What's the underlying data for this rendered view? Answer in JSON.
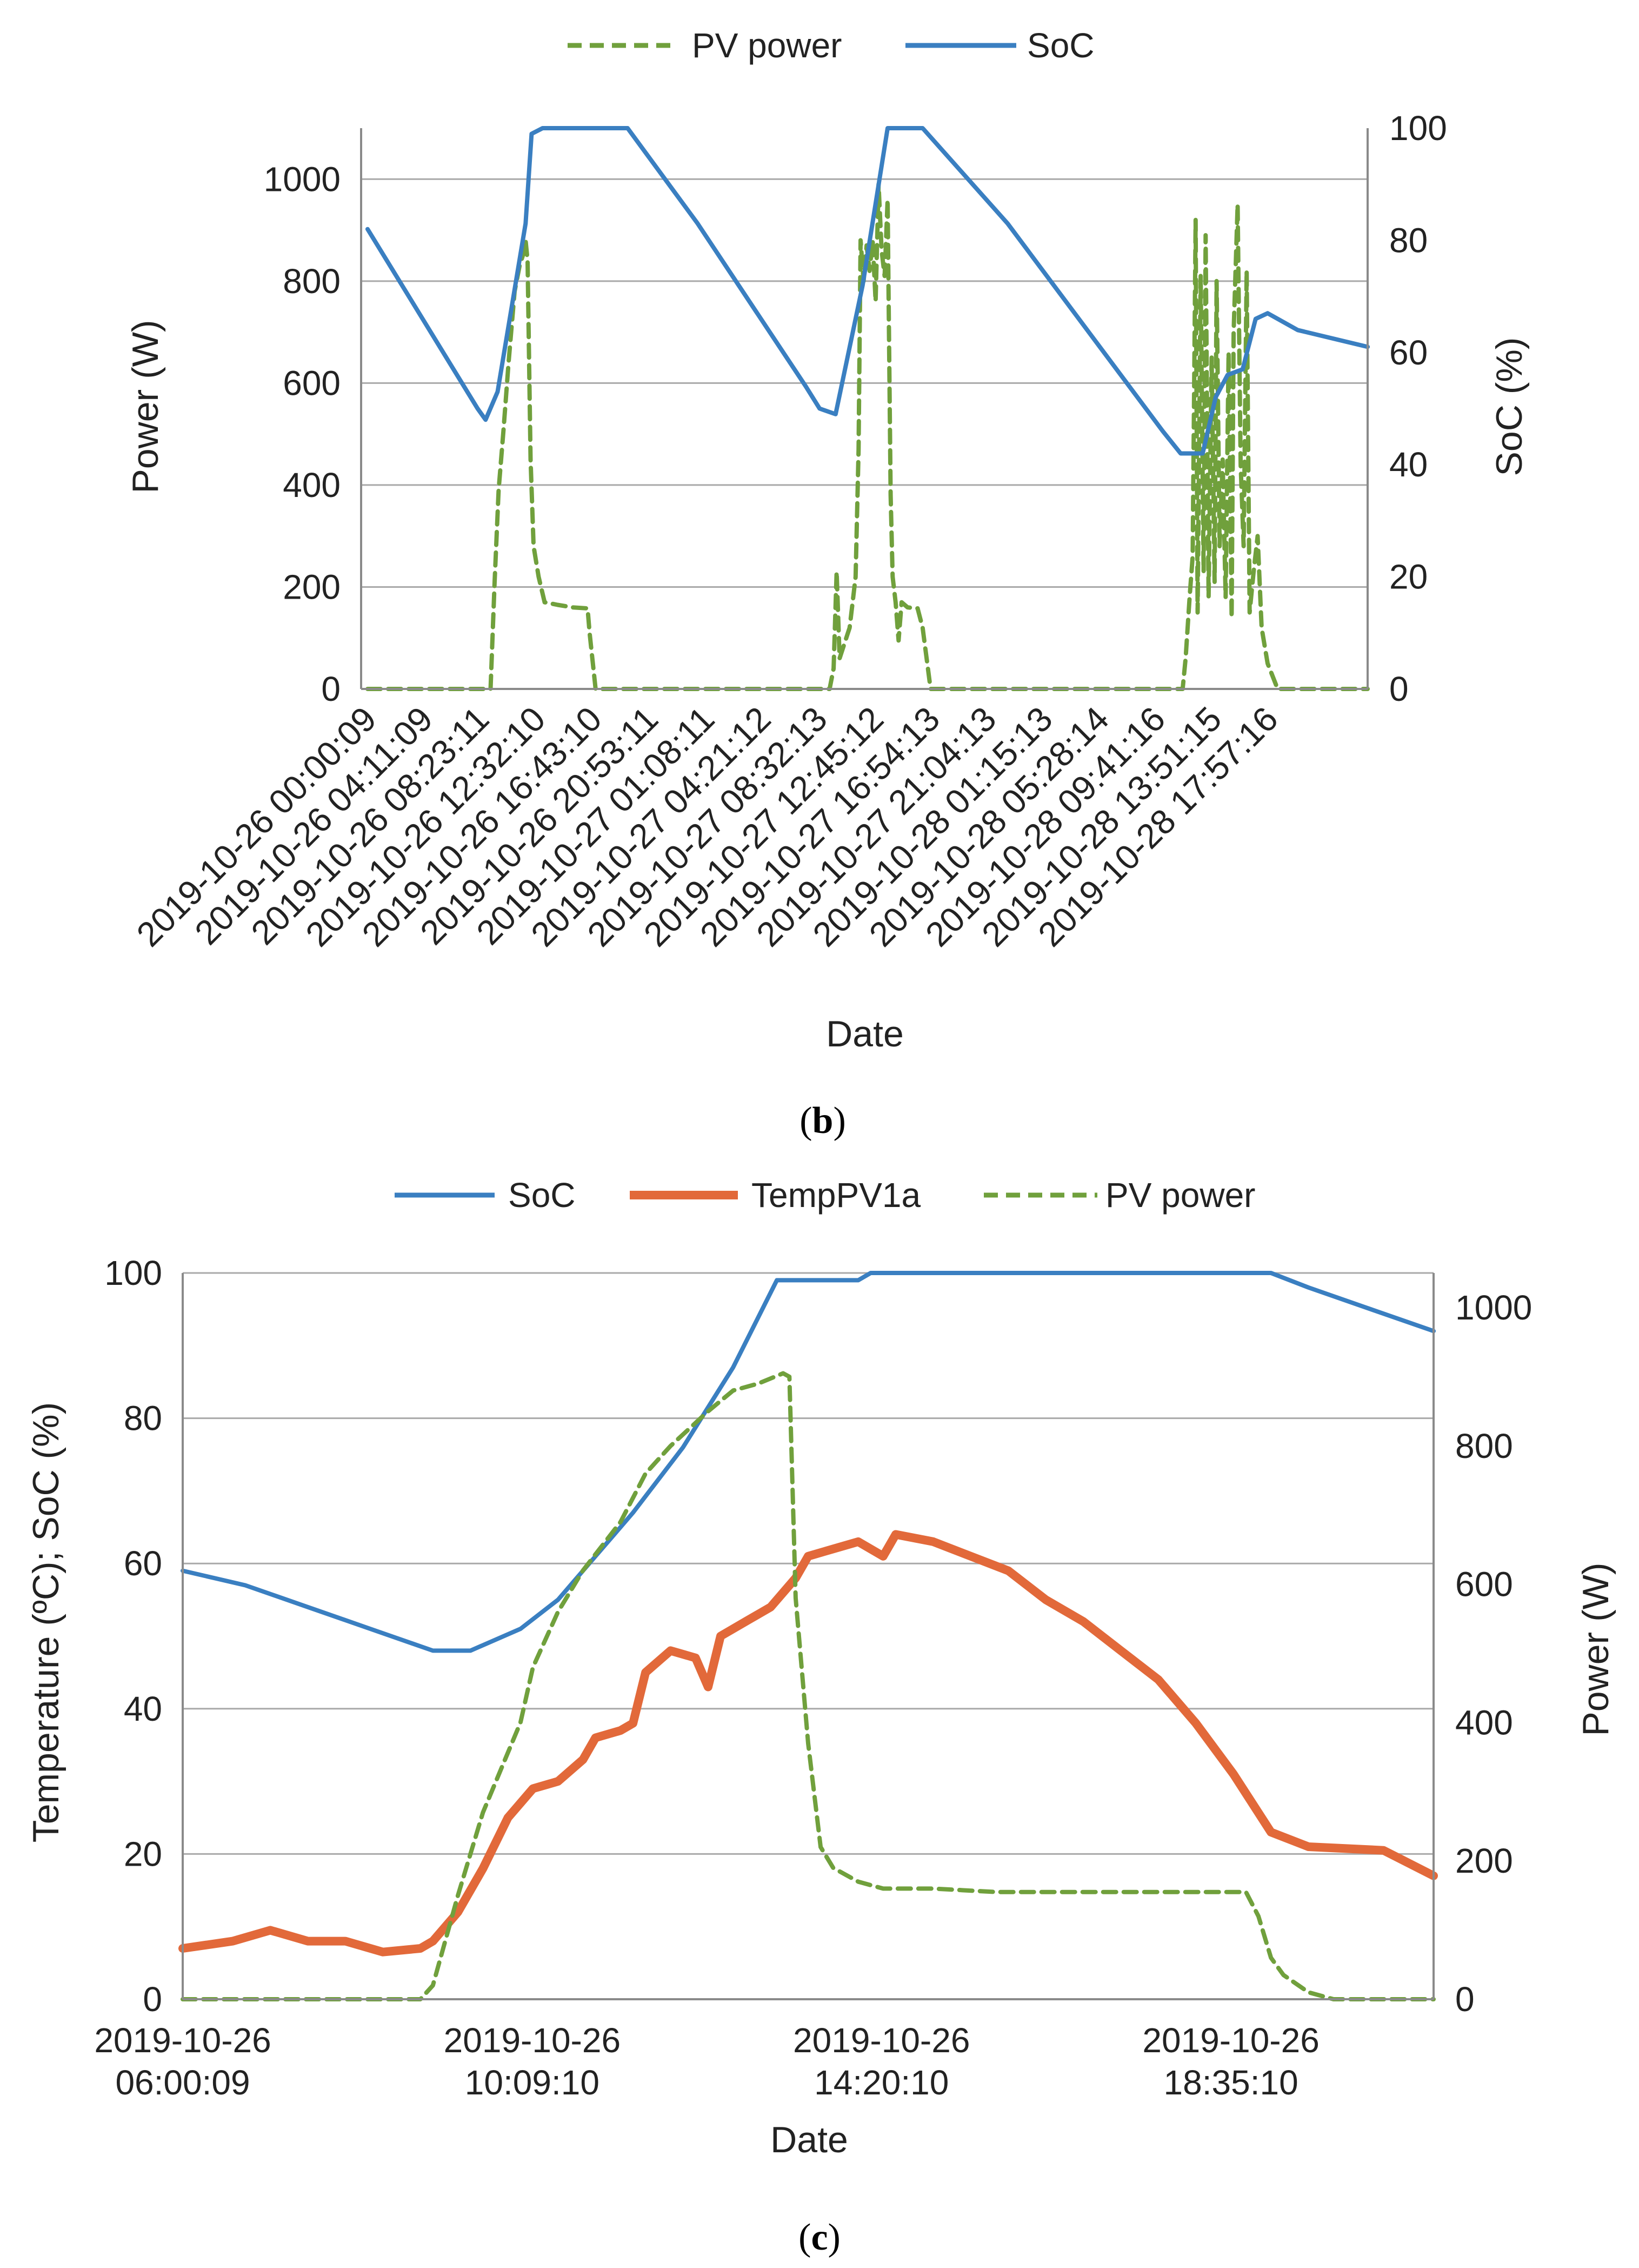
{
  "chart_data": [
    {
      "id": "b",
      "type": "line",
      "caption": "b",
      "xlabel": "Date",
      "ylabel_left": "Power (W)",
      "ylabel_right": "SoC (%)",
      "ylim_left": [
        0,
        1100
      ],
      "ylim_right": [
        0,
        100
      ],
      "yticks_left": [
        0,
        200,
        400,
        600,
        800,
        1000
      ],
      "yticks_right": [
        0,
        20,
        40,
        60,
        80,
        100
      ],
      "grid": true,
      "legend_position": "top",
      "xrange": [
        0,
        1
      ],
      "x_tick_labels": [
        "2019-10-26 00:00:09",
        "2019-10-26 04:11:09",
        "2019-10-26 08:23:11",
        "2019-10-26 12:32:10",
        "2019-10-26 16:43:10",
        "2019-10-26 20:53:11",
        "2019-10-27 01:08:11",
        "2019-10-27 04:21:12",
        "2019-10-27 08:32:13",
        "2019-10-27 12:45:12",
        "2019-10-27 16:54:13",
        "2019-10-27 21:04:13",
        "2019-10-28 01:15:13",
        "2019-10-28 05:28:14",
        "2019-10-28 09:41:16",
        "2019-10-28 13:51:15",
        "2019-10-28 17:57:16"
      ],
      "series": [
        {
          "name": "PV power",
          "axis": "left",
          "color": "#70a03c",
          "dash": true,
          "points": [
            [
              0,
              0
            ],
            [
              0.123,
              0
            ],
            [
              0.127,
              210
            ],
            [
              0.131,
              390
            ],
            [
              0.136,
              510
            ],
            [
              0.141,
              640
            ],
            [
              0.147,
              780
            ],
            [
              0.152,
              830
            ],
            [
              0.156,
              855
            ],
            [
              0.158,
              880
            ],
            [
              0.16,
              840
            ],
            [
              0.163,
              450
            ],
            [
              0.166,
              280
            ],
            [
              0.171,
              220
            ],
            [
              0.177,
              170
            ],
            [
              0.19,
              165
            ],
            [
              0.205,
              160
            ],
            [
              0.22,
              158
            ],
            [
              0.222,
              110
            ],
            [
              0.228,
              0
            ],
            [
              0.462,
              0
            ],
            [
              0.466,
              40
            ],
            [
              0.469,
              230
            ],
            [
              0.472,
              60
            ],
            [
              0.477,
              90
            ],
            [
              0.482,
              120
            ],
            [
              0.485,
              170
            ],
            [
              0.488,
              220
            ],
            [
              0.491,
              470
            ],
            [
              0.493,
              880
            ],
            [
              0.496,
              800
            ],
            [
              0.499,
              870
            ],
            [
              0.502,
              820
            ],
            [
              0.505,
              880
            ],
            [
              0.508,
              760
            ],
            [
              0.511,
              990
            ],
            [
              0.514,
              860
            ],
            [
              0.517,
              810
            ],
            [
              0.52,
              960
            ],
            [
              0.523,
              380
            ],
            [
              0.525,
              220
            ],
            [
              0.528,
              170
            ],
            [
              0.531,
              95
            ],
            [
              0.534,
              170
            ],
            [
              0.54,
              160
            ],
            [
              0.55,
              158
            ],
            [
              0.555,
              120
            ],
            [
              0.563,
              0
            ],
            [
              0.815,
              0
            ],
            [
              0.818,
              60
            ],
            [
              0.822,
              180
            ],
            [
              0.825,
              260
            ],
            [
              0.828,
              920
            ],
            [
              0.83,
              150
            ],
            [
              0.833,
              810
            ],
            [
              0.836,
              230
            ],
            [
              0.838,
              890
            ],
            [
              0.841,
              180
            ],
            [
              0.844,
              650
            ],
            [
              0.847,
              210
            ],
            [
              0.849,
              800
            ],
            [
              0.852,
              280
            ],
            [
              0.855,
              450
            ],
            [
              0.858,
              180
            ],
            [
              0.861,
              660
            ],
            [
              0.864,
              140
            ],
            [
              0.866,
              700
            ],
            [
              0.87,
              950
            ],
            [
              0.873,
              440
            ],
            [
              0.876,
              280
            ],
            [
              0.879,
              820
            ],
            [
              0.882,
              150
            ],
            [
              0.886,
              230
            ],
            [
              0.89,
              300
            ],
            [
              0.894,
              120
            ],
            [
              0.9,
              50
            ],
            [
              0.91,
              0
            ],
            [
              1,
              0
            ]
          ]
        },
        {
          "name": "SoC",
          "axis": "right",
          "color": "#3a7fc1",
          "dash": false,
          "points": [
            [
              0,
              82
            ],
            [
              0.11,
              50
            ],
            [
              0.118,
              48
            ],
            [
              0.13,
              53
            ],
            [
              0.158,
              83
            ],
            [
              0.164,
              99
            ],
            [
              0.175,
              100
            ],
            [
              0.26,
              100
            ],
            [
              0.33,
              83
            ],
            [
              0.438,
              54
            ],
            [
              0.452,
              50
            ],
            [
              0.468,
              49
            ],
            [
              0.495,
              72
            ],
            [
              0.52,
              100
            ],
            [
              0.555,
              100
            ],
            [
              0.64,
              83
            ],
            [
              0.795,
              46
            ],
            [
              0.813,
              42
            ],
            [
              0.835,
              42
            ],
            [
              0.848,
              52
            ],
            [
              0.86,
              56
            ],
            [
              0.875,
              57
            ],
            [
              0.888,
              66
            ],
            [
              0.9,
              67
            ],
            [
              0.93,
              64
            ],
            [
              1,
              61
            ]
          ]
        }
      ]
    },
    {
      "id": "c",
      "type": "line",
      "caption": "c",
      "xlabel": "Date",
      "ylabel_left": "Temperature (ºC); SoC (%)",
      "ylabel_right": "Power (W)",
      "ylim_left": [
        0,
        100
      ],
      "ylim_right": [
        0,
        1050
      ],
      "yticks_left": [
        0,
        20,
        40,
        60,
        80,
        100
      ],
      "yticks_right": [
        0,
        200,
        400,
        600,
        800,
        1000
      ],
      "grid": true,
      "legend_position": "top",
      "xrange": [
        0,
        1
      ],
      "x_tick_labels": [
        [
          "2019-10-26",
          "06:00:09"
        ],
        [
          "2019-10-26",
          "10:09:10"
        ],
        [
          "2019-10-26",
          "14:20:10"
        ],
        [
          "2019-10-26",
          "18:35:10"
        ]
      ],
      "series": [
        {
          "name": "SoC",
          "axis": "left",
          "color": "#3a7fc1",
          "dash": false,
          "points": [
            [
              0,
              59
            ],
            [
              0.05,
              57
            ],
            [
              0.1,
              54
            ],
            [
              0.15,
              51
            ],
            [
              0.2,
              48
            ],
            [
              0.23,
              48
            ],
            [
              0.27,
              51
            ],
            [
              0.3,
              55
            ],
            [
              0.33,
              61
            ],
            [
              0.36,
              67
            ],
            [
              0.4,
              76
            ],
            [
              0.44,
              87
            ],
            [
              0.475,
              99
            ],
            [
              0.54,
              99
            ],
            [
              0.55,
              100
            ],
            [
              0.87,
              100
            ],
            [
              0.9,
              98
            ],
            [
              0.95,
              95
            ],
            [
              1,
              92
            ]
          ]
        },
        {
          "name": "TempPV1a",
          "axis": "left",
          "color": "#e2693a",
          "dash": false,
          "width": 16,
          "points": [
            [
              0,
              7
            ],
            [
              0.04,
              8
            ],
            [
              0.07,
              9.5
            ],
            [
              0.1,
              8
            ],
            [
              0.13,
              8
            ],
            [
              0.16,
              6.5
            ],
            [
              0.19,
              7
            ],
            [
              0.2,
              8
            ],
            [
              0.22,
              12
            ],
            [
              0.24,
              18
            ],
            [
              0.26,
              25
            ],
            [
              0.28,
              29
            ],
            [
              0.3,
              30
            ],
            [
              0.32,
              33
            ],
            [
              0.33,
              36
            ],
            [
              0.35,
              37
            ],
            [
              0.36,
              38
            ],
            [
              0.37,
              45
            ],
            [
              0.39,
              48
            ],
            [
              0.41,
              47
            ],
            [
              0.42,
              43
            ],
            [
              0.43,
              50
            ],
            [
              0.45,
              52
            ],
            [
              0.47,
              54
            ],
            [
              0.49,
              58
            ],
            [
              0.5,
              61
            ],
            [
              0.52,
              62
            ],
            [
              0.54,
              63
            ],
            [
              0.56,
              61
            ],
            [
              0.57,
              64
            ],
            [
              0.6,
              63
            ],
            [
              0.63,
              61
            ],
            [
              0.66,
              59
            ],
            [
              0.69,
              55
            ],
            [
              0.72,
              52
            ],
            [
              0.75,
              48
            ],
            [
              0.78,
              44
            ],
            [
              0.81,
              38
            ],
            [
              0.84,
              31
            ],
            [
              0.87,
              23
            ],
            [
              0.9,
              21
            ],
            [
              0.96,
              20.5
            ],
            [
              1,
              17
            ]
          ]
        },
        {
          "name": "PV power",
          "axis": "right",
          "color": "#70a03c",
          "dash": true,
          "points": [
            [
              0,
              0
            ],
            [
              0.19,
              0
            ],
            [
              0.2,
              20
            ],
            [
              0.22,
              150
            ],
            [
              0.24,
              270
            ],
            [
              0.27,
              400
            ],
            [
              0.28,
              480
            ],
            [
              0.3,
              560
            ],
            [
              0.32,
              620
            ],
            [
              0.35,
              690
            ],
            [
              0.37,
              760
            ],
            [
              0.39,
              800
            ],
            [
              0.42,
              850
            ],
            [
              0.44,
              880
            ],
            [
              0.46,
              890
            ],
            [
              0.48,
              905
            ],
            [
              0.485,
              900
            ],
            [
              0.49,
              580
            ],
            [
              0.5,
              370
            ],
            [
              0.51,
              220
            ],
            [
              0.52,
              190
            ],
            [
              0.54,
              170
            ],
            [
              0.56,
              160
            ],
            [
              0.6,
              160
            ],
            [
              0.65,
              155
            ],
            [
              0.7,
              155
            ],
            [
              0.8,
              155
            ],
            [
              0.85,
              155
            ],
            [
              0.86,
              120
            ],
            [
              0.87,
              60
            ],
            [
              0.88,
              35
            ],
            [
              0.9,
              10
            ],
            [
              0.92,
              0
            ],
            [
              1,
              0
            ]
          ]
        }
      ]
    }
  ]
}
